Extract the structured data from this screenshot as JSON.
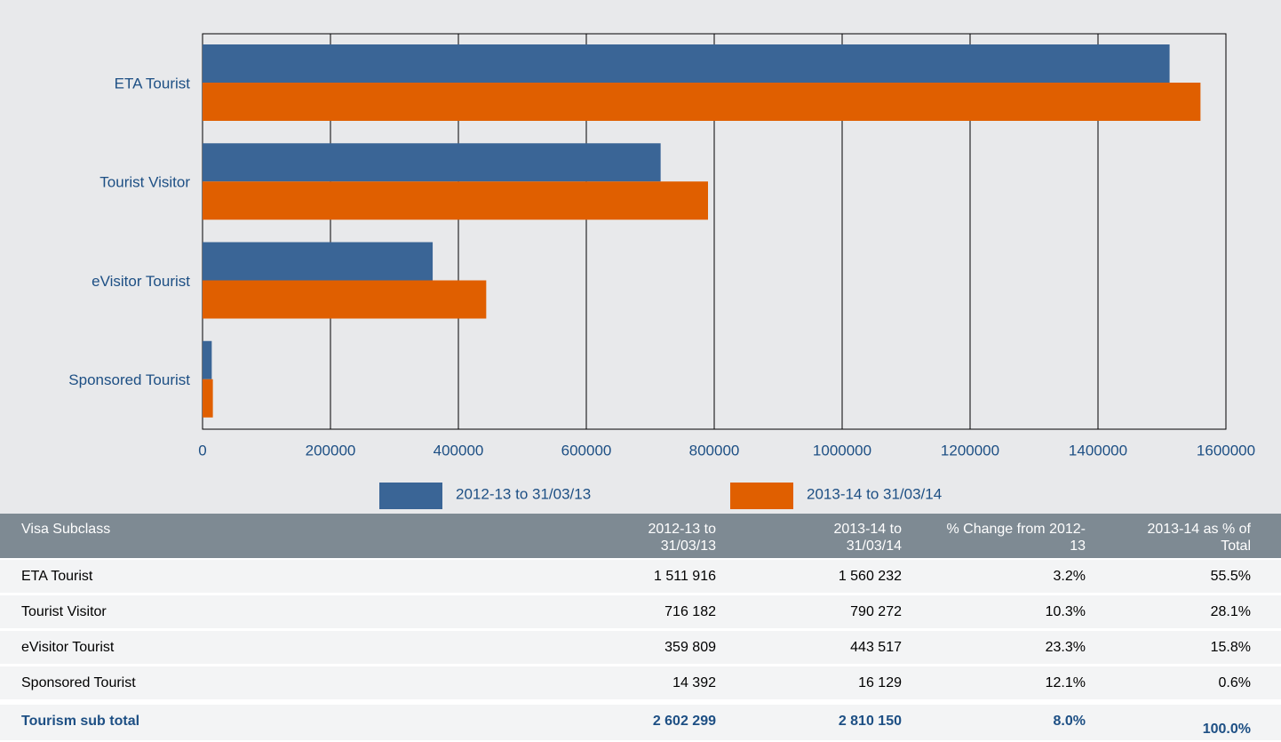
{
  "chart_data": {
    "type": "bar",
    "orientation": "horizontal",
    "categories": [
      "ETA Tourist",
      "Tourist Visitor",
      "eVisitor Tourist",
      "Sponsored Tourist"
    ],
    "series": [
      {
        "name": "2012-13 to 31/03/13",
        "color": "#3a6596",
        "values": [
          1511916,
          716182,
          359809,
          14392
        ]
      },
      {
        "name": "2013-14 to 31/03/14",
        "color": "#e05f00",
        "values": [
          1560232,
          790272,
          443517,
          16129
        ]
      }
    ],
    "xlim": [
      0,
      1600000
    ],
    "xticks": [
      0,
      200000,
      400000,
      600000,
      800000,
      1000000,
      1200000,
      1400000,
      1600000
    ],
    "grid": true
  },
  "table": {
    "header": [
      "Visa Subclass",
      "2012-13 to 31/03/13",
      "2013-14 to 31/03/14",
      "% Change from 2012-13",
      "2013-14 as % of Total"
    ],
    "rows": [
      [
        "ETA Tourist",
        "1 511 916",
        "1 560 232",
        "3.2%",
        "55.5%"
      ],
      [
        "Tourist Visitor",
        "716 182",
        "790 272",
        "10.3%",
        "28.1%"
      ],
      [
        "eVisitor Tourist",
        "359 809",
        "443 517",
        "23.3%",
        "15.8%"
      ],
      [
        "Sponsored Tourist",
        "14 392",
        "16 129",
        "12.1%",
        "0.6%"
      ]
    ],
    "total": [
      "Tourism sub total",
      "2 602 299",
      "2 810 150",
      "8.0%",
      "100.0%"
    ]
  }
}
